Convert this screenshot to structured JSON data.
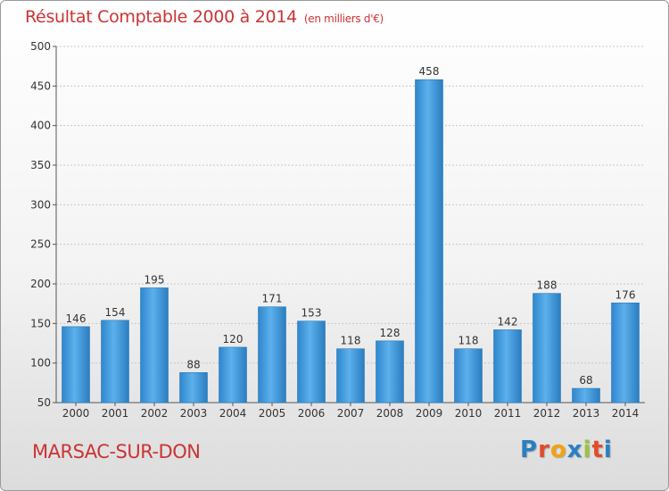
{
  "title": "Résultat Comptable 2000 à 2014",
  "unit": "(en milliers d'€)",
  "place": "MARSAC-SUR-DON",
  "logo": {
    "text": "Proxiti",
    "colors": [
      "#2a7fc1",
      "#e24b2b",
      "#f2a30f",
      "#2a7fc1",
      "#9bc43a",
      "#e24b2b",
      "#2a7fc1"
    ]
  },
  "colors": {
    "bar": "#3a93d8",
    "bar_light": "#5fb0ea",
    "title": "#cc3333",
    "axis": "#555555",
    "grid": "#c8c8c8"
  },
  "chart_data": {
    "type": "bar",
    "title": "Résultat Comptable 2000 à 2014",
    "subtitle": "(en milliers d'€)",
    "xlabel": "",
    "ylabel": "",
    "categories": [
      "2000",
      "2001",
      "2002",
      "2003",
      "2004",
      "2005",
      "2006",
      "2007",
      "2008",
      "2009",
      "2010",
      "2011",
      "2012",
      "2013",
      "2014"
    ],
    "values": [
      146,
      154,
      195,
      88,
      120,
      171,
      153,
      118,
      128,
      458,
      118,
      142,
      188,
      68,
      176
    ],
    "ylim": [
      50,
      500
    ],
    "yticks": [
      50,
      100,
      150,
      200,
      250,
      300,
      350,
      400,
      450,
      500
    ],
    "grid": true,
    "legend": "none"
  }
}
